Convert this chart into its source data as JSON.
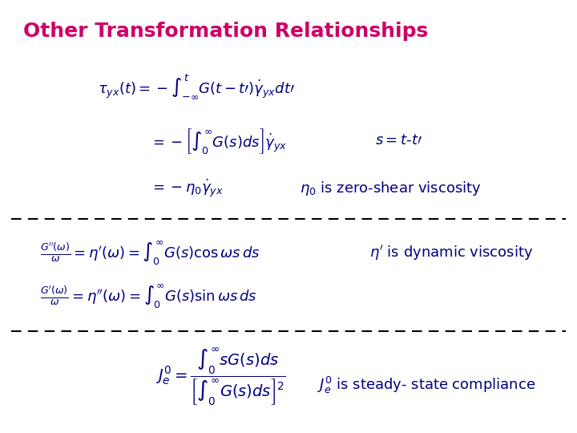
{
  "title": "Other Transformation Relationships",
  "title_color": "#cc0066",
  "title_fontsize": 18,
  "bg_color": "#ffffff",
  "eq_color": "#000080",
  "note_color": "#000080",
  "dash_color": "#000000",
  "fs": 13
}
